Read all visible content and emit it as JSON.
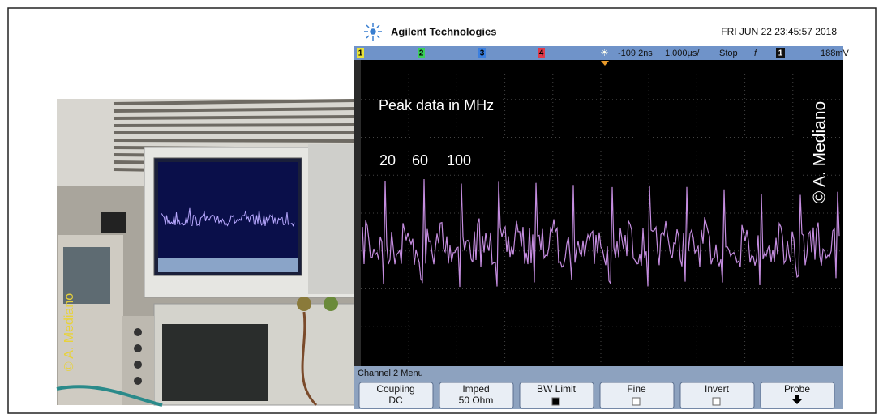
{
  "header": {
    "brand": "Agilent Technologies",
    "datetime": "FRI JUN 22 23:45:57 2018"
  },
  "status_bar": {
    "channels": [
      "1",
      "2",
      "3",
      "4"
    ],
    "delay": "-109.2ns",
    "timebase": "1.000µs/",
    "run_state": "Stop",
    "trigger_channel": "1",
    "trigger_level": "188mV"
  },
  "annotations": {
    "title": "Peak data in MHz",
    "peaks": [
      "20",
      "60",
      "100"
    ],
    "copyright": "© A. Mediano",
    "photo_copyright": "© A. Mediano"
  },
  "menu": {
    "title": "Channel 2  Menu",
    "buttons": [
      {
        "label": "Coupling",
        "value": "DC"
      },
      {
        "label": "Imped",
        "value": "50 Ohm"
      },
      {
        "label": "BW Limit"
      },
      {
        "label": "Fine"
      },
      {
        "label": "Invert"
      },
      {
        "label": "Probe"
      }
    ]
  }
}
